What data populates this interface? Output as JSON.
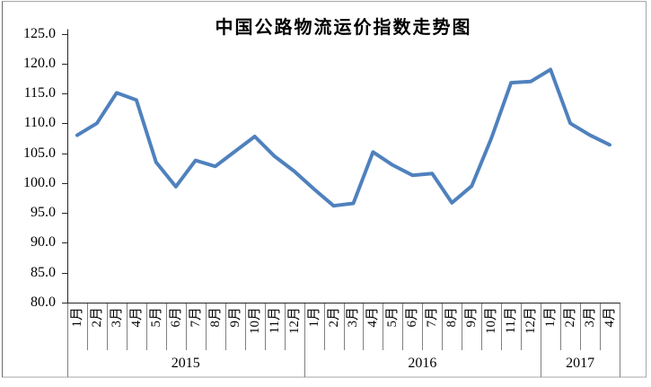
{
  "chart_data": {
    "type": "line",
    "title": "中国公路物流运价指数走势图",
    "xlabel": "",
    "ylabel": "",
    "ylim": [
      80,
      125
    ],
    "grid": false,
    "legend": "none",
    "y_ticks": [
      "125.0",
      "120.0",
      "115.0",
      "110.0",
      "105.0",
      "100.0",
      "95.0",
      "90.0",
      "85.0",
      "80.0"
    ],
    "categories": [
      "1月",
      "2月",
      "3月",
      "4月",
      "5月",
      "6月",
      "7月",
      "8月",
      "9月",
      "10月",
      "11月",
      "12月",
      "1月",
      "2月",
      "3月",
      "4月",
      "5月",
      "6月",
      "7月",
      "8月",
      "9月",
      "10月",
      "11月",
      "12月",
      "1月",
      "2月",
      "3月",
      "4月"
    ],
    "year_groups": [
      {
        "label": "2015",
        "months": 12
      },
      {
        "label": "2016",
        "months": 12
      },
      {
        "label": "2017",
        "months": 4
      }
    ],
    "series_name": "中国公路物流运价指数",
    "values": [
      108.0,
      110.0,
      115.1,
      113.9,
      103.5,
      99.4,
      103.8,
      102.8,
      105.3,
      107.8,
      104.5,
      102.0,
      99.0,
      96.2,
      96.6,
      105.2,
      103.0,
      101.3,
      101.6,
      96.7,
      99.5,
      107.5,
      116.8,
      117.0,
      119.0,
      110.0,
      108.0,
      106.4
    ],
    "colors": {
      "line": "#4F81BD",
      "axis": "#262626",
      "divider": "#808080",
      "border": "#a6a6a6",
      "border_left": "#6b6b6b",
      "background": "#ffffff"
    }
  }
}
